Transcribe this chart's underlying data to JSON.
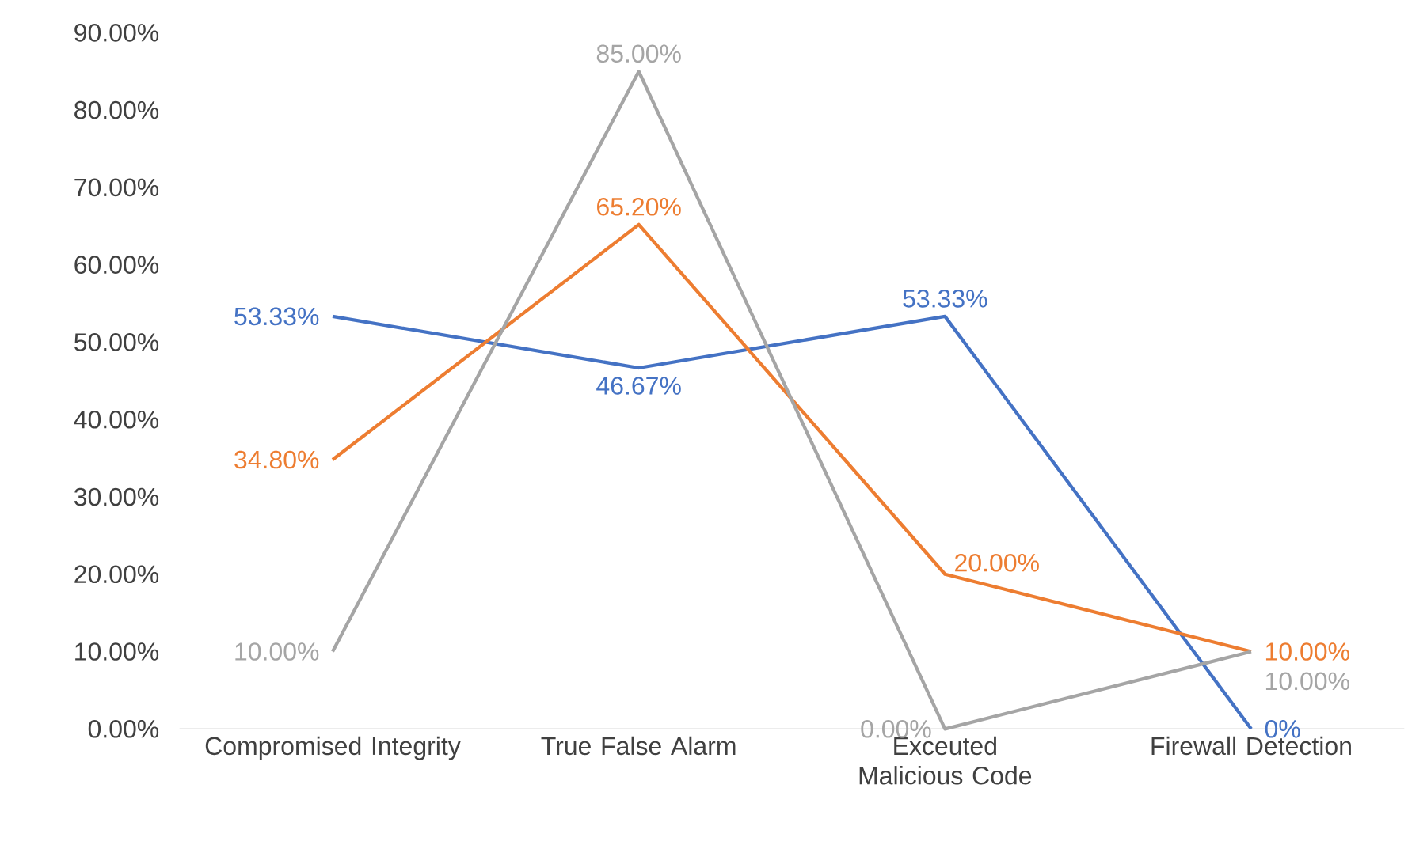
{
  "chart_data": {
    "type": "line",
    "categories": [
      "Compromised Integrity",
      "True False Alarm",
      "Exceuted Malicious Code",
      "Firewall Detection"
    ],
    "series": [
      {
        "color": "#4472c4",
        "values": [
          53.33,
          46.67,
          53.33,
          0
        ],
        "value_labels": [
          "53.33%",
          "46.67%",
          "53.33%",
          "0%"
        ]
      },
      {
        "color": "#ed7d31",
        "values": [
          34.8,
          65.2,
          20.0,
          10.0
        ],
        "value_labels": [
          "34.80%",
          "65.20%",
          "20.00%",
          "10.00%"
        ]
      },
      {
        "color": "#a5a5a5",
        "values": [
          10,
          85,
          0,
          10
        ],
        "value_labels": [
          "10.00%",
          "85.00%",
          "0.00%",
          "10.00%"
        ]
      }
    ],
    "ylim": [
      0,
      90
    ],
    "yticks": [
      {
        "value": 0,
        "label": "0.00%"
      },
      {
        "value": 10,
        "label": "10.00%"
      },
      {
        "value": 20,
        "label": "20.00%"
      },
      {
        "value": 30,
        "label": "30.00%"
      },
      {
        "value": 40,
        "label": "40.00%"
      },
      {
        "value": 50,
        "label": "50.00%"
      },
      {
        "value": 60,
        "label": "60.00%"
      },
      {
        "value": 70,
        "label": "70.00%"
      },
      {
        "value": 80,
        "label": "80.00%"
      },
      {
        "value": 90,
        "label": "90.00%"
      }
    ],
    "grid": false,
    "legend": false,
    "marker": "none",
    "line_style": "solid"
  }
}
